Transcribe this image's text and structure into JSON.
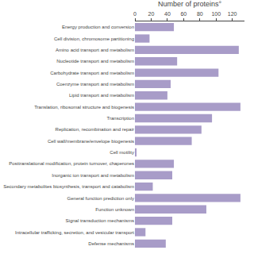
{
  "chart_data": {
    "type": "bar",
    "orientation": "horizontal",
    "title": "Number of proteins°",
    "categories": [
      "Energy production and conversion",
      "Cell division, chromosome partitioning",
      "Amino acid transport and metabolism",
      "Nucleotide transport and metabolism",
      "Carbohydrate transport and metabolism",
      "Coenzyme transport and metabolism",
      "Lipid transport and metabolism",
      "Translation, ribosomal structure and biogenesis",
      "Transcription",
      "Replication, recombination and repair",
      "Cell wall/membrane/envelope biogenesis",
      "Cell motility",
      "Posttranslational modification, protein turnover, chaperones",
      "Inorganic ion transport and metabolism",
      "Secondary metabolites biosynthesis, transport and catabolism",
      "General function prediction only",
      "Function unknown",
      "Signal transduction mechanisms",
      "Intracellular trafficking, secretion, and vesicular transport",
      "Defense mechanisms"
    ],
    "values": [
      48,
      18,
      128,
      52,
      103,
      44,
      40,
      130,
      95,
      82,
      70,
      2,
      48,
      46,
      22,
      130,
      88,
      46,
      13,
      38
    ],
    "color": "#a89cc8",
    "xlim": [
      0,
      135
    ],
    "xticks": [
      0,
      20,
      40,
      60,
      80,
      100,
      120
    ],
    "grid": false
  }
}
